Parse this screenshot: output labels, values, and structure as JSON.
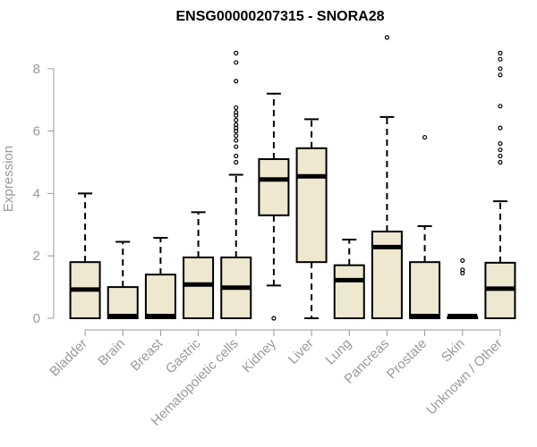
{
  "chart_data": {
    "type": "box",
    "title": "ENSG00000207315 - SNORA28",
    "xlabel": "",
    "ylabel": "Expression",
    "ylim": [
      0,
      9
    ],
    "yticks": [
      0,
      2,
      4,
      6,
      8
    ],
    "grid": false,
    "legend": "none",
    "colors": {
      "box_fill": "#EEE8D0",
      "box_stroke": "#000000",
      "axis": "#999999",
      "title": "#000000"
    },
    "categories": [
      "Bladder",
      "Brain",
      "Breast",
      "Gastric",
      "Hematopoietic cells",
      "Kidney",
      "Liver",
      "Lung",
      "Pancreas",
      "Prostate",
      "Skin",
      "Unknown / Other"
    ],
    "boxes": [
      {
        "category": "Bladder",
        "whisker_low": 0,
        "q1": 0,
        "median": 0.92,
        "q3": 1.8,
        "whisker_high": 4.0,
        "outliers": []
      },
      {
        "category": "Brain",
        "whisker_low": 0,
        "q1": 0,
        "median": 0.02,
        "q3": 1.0,
        "whisker_high": 2.45,
        "outliers": []
      },
      {
        "category": "Breast",
        "whisker_low": 0,
        "q1": 0,
        "median": 0.02,
        "q3": 1.4,
        "whisker_high": 2.58,
        "outliers": []
      },
      {
        "category": "Gastric",
        "whisker_low": 0,
        "q1": 0,
        "median": 1.08,
        "q3": 1.95,
        "whisker_high": 3.4,
        "outliers": []
      },
      {
        "category": "Hematopoietic cells",
        "whisker_low": 0,
        "q1": 0,
        "median": 0.98,
        "q3": 1.95,
        "whisker_high": 4.6,
        "outliers": [
          5.0,
          5.2,
          5.5,
          5.7,
          5.85,
          6.0,
          6.1,
          6.2,
          6.35,
          6.5,
          6.6,
          6.75,
          7.6,
          8.2,
          8.5
        ]
      },
      {
        "category": "Kidney",
        "whisker_low": 1.05,
        "q1": 3.3,
        "median": 4.45,
        "q3": 5.1,
        "whisker_high": 7.2,
        "outliers": [
          0.0
        ]
      },
      {
        "category": "Liver",
        "whisker_low": 0,
        "q1": 1.8,
        "median": 4.55,
        "q3": 5.45,
        "whisker_high": 6.38,
        "outliers": []
      },
      {
        "category": "Lung",
        "whisker_low": 0,
        "q1": 0,
        "median": 1.22,
        "q3": 1.7,
        "whisker_high": 2.52,
        "outliers": []
      },
      {
        "category": "Pancreas",
        "whisker_low": 0,
        "q1": 0,
        "median": 2.28,
        "q3": 2.78,
        "whisker_high": 6.45,
        "outliers": [
          9.0
        ]
      },
      {
        "category": "Prostate",
        "whisker_low": 0,
        "q1": 0,
        "median": 0.02,
        "q3": 1.8,
        "whisker_high": 2.95,
        "outliers": [
          5.8
        ]
      },
      {
        "category": "Skin",
        "whisker_low": 0,
        "q1": 0,
        "median": 0.02,
        "q3": 0.04,
        "whisker_high": 0.05,
        "outliers": [
          1.45,
          1.55,
          1.85
        ]
      },
      {
        "category": "Unknown / Other",
        "whisker_low": 0,
        "q1": 0,
        "median": 0.95,
        "q3": 1.78,
        "whisker_high": 3.75,
        "outliers": [
          5.0,
          5.2,
          5.4,
          5.6,
          6.1,
          6.8,
          7.8,
          8.0,
          8.3,
          8.5
        ]
      }
    ]
  }
}
